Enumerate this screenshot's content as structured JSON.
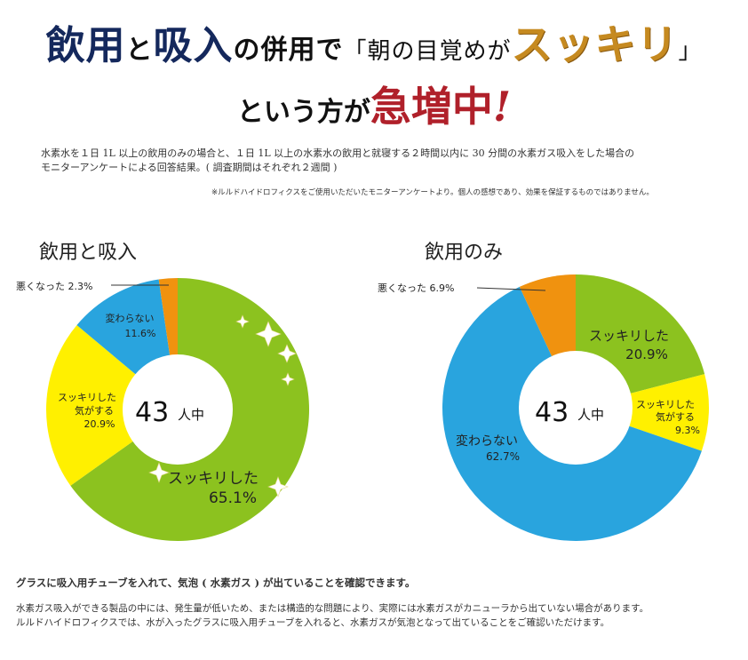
{
  "header": {
    "line1": {
      "part1": "飲用",
      "part2": "と",
      "part3": "吸入",
      "part4": "の併用で",
      "part5": "「朝の目覚めが",
      "part6": "スッキリ",
      "part7": "」"
    },
    "line2": {
      "part1": "という方が",
      "part2": "急増中",
      "part3": "!"
    }
  },
  "description": {
    "line1": "水素水を１日 1L 以上の飲用のみの場合と、１日 1L 以上の水素水の飲用と就寝する２時間以内に 30 分間の水素ガス吸入をした場合の",
    "line2": "モニターアンケートによる回答結果。( 調査期間はそれぞれ２週間 )",
    "note": "※ルルドハイドロフィクスをご使用いただいたモニターアンケートより。個人の感想であり、効果を保証するものではありません。"
  },
  "chart_data": [
    {
      "type": "pie",
      "title": "飲用と吸入",
      "center_label": {
        "number": "43",
        "unit": "人中"
      },
      "slices": [
        {
          "label": "スッキリした",
          "value": 65.1,
          "color": "#8cc21f"
        },
        {
          "label": "スッキリした気がする",
          "value": 20.9,
          "color": "#fff000"
        },
        {
          "label": "変わらない",
          "value": 11.6,
          "color": "#29a4de"
        },
        {
          "label": "悪くなった",
          "value": 2.3,
          "color": "#f0920f"
        }
      ]
    },
    {
      "type": "pie",
      "title": "飲用のみ",
      "center_label": {
        "number": "43",
        "unit": "人中"
      },
      "slices": [
        {
          "label": "スッキリした",
          "value": 20.9,
          "color": "#8cc21f"
        },
        {
          "label": "スッキリした気がする",
          "value": 9.3,
          "color": "#fff000"
        },
        {
          "label": "変わらない",
          "value": 62.7,
          "color": "#29a4de"
        },
        {
          "label": "悪くなった",
          "value": 6.9,
          "color": "#f0920f"
        }
      ]
    }
  ],
  "chart_labels": {
    "left": {
      "sukkiri": "スッキリした",
      "sukkiri_val": "65.1%",
      "kigasuru1": "スッキリした",
      "kigasuru2": "気がする",
      "kigasuru_val": "20.9%",
      "kawaranai": "変わらない",
      "kawaranai_val": "11.6%",
      "waruku": "悪くなった 2.3%"
    },
    "right": {
      "sukkiri": "スッキリした",
      "sukkiri_val": "20.9%",
      "kigasuru1": "スッキリした",
      "kigasuru2": "気がする",
      "kigasuru_val": "9.3%",
      "kawaranai": "変わらない",
      "kawaranai_val": "62.7%",
      "waruku": "悪くなった 6.9%"
    }
  },
  "footer": {
    "line1": "グラスに吸入用チューブを入れて、気泡 ( 水素ガス ) が出ていることを確認できます。",
    "line2": "水素ガス吸入ができる製品の中には、発生量が低いため、または構造的な問題により、実際には水素ガスがカニューラから出ていない場合があります。",
    "line3": "ルルドハイドロフィクスでは、水が入ったグラスに吸入用チューブを入れると、水素ガスが気泡となって出ていることをご確認いただけます。"
  }
}
